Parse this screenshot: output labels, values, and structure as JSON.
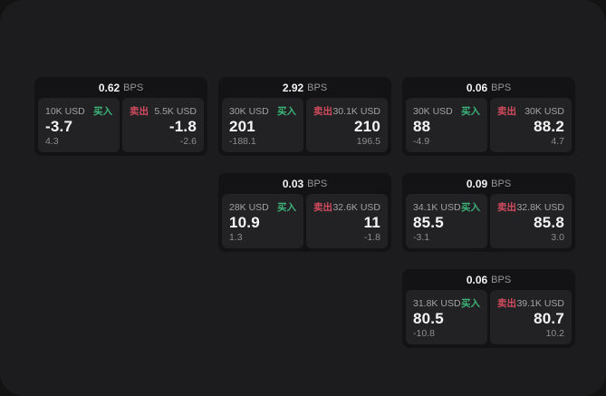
{
  "labels": {
    "buy": "买入",
    "sell": "卖出",
    "unit": "BPS"
  },
  "colors": {
    "buy": "#3cb479",
    "sell": "#d24b5e",
    "panel_bg": "#1c1c1e",
    "card_bg": "#131315",
    "pane_bg": "#222224"
  },
  "cards": [
    {
      "bps": "0.62",
      "buy": {
        "amount": "10K USD",
        "value": "-3.7",
        "sub": "4.3"
      },
      "sell": {
        "amount": "5.5K USD",
        "value": "-1.8",
        "sub": "-2.6"
      }
    },
    {
      "bps": "2.92",
      "buy": {
        "amount": "30K USD",
        "value": "201",
        "sub": "-188.1"
      },
      "sell": {
        "amount": "30.1K USD",
        "value": "210",
        "sub": "196.5"
      }
    },
    {
      "bps": "0.03",
      "buy": {
        "amount": "28K USD",
        "value": "10.9",
        "sub": "1.3"
      },
      "sell": {
        "amount": "32.6K USD",
        "value": "11",
        "sub": "-1.8"
      }
    },
    {
      "bps": "0.06",
      "buy": {
        "amount": "30K USD",
        "value": "88",
        "sub": "-4.9"
      },
      "sell": {
        "amount": "30K USD",
        "value": "88.2",
        "sub": "4.7"
      }
    },
    {
      "bps": "0.09",
      "buy": {
        "amount": "34.1K USD",
        "value": "85.5",
        "sub": "-3.1"
      },
      "sell": {
        "amount": "32.8K USD",
        "value": "85.8",
        "sub": "3.0"
      }
    },
    {
      "bps": "0.06",
      "buy": {
        "amount": "31.8K USD",
        "value": "80.5",
        "sub": "-10.8"
      },
      "sell": {
        "amount": "39.1K USD",
        "value": "80.7",
        "sub": "10.2"
      }
    }
  ]
}
